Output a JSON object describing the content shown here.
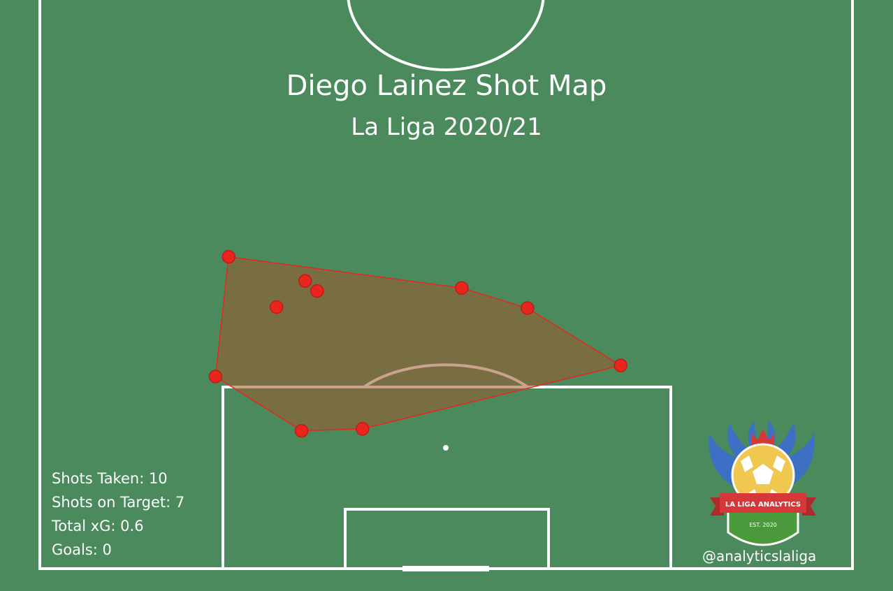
{
  "chart_data": {
    "type": "scatter",
    "title": "Diego Lainez Shot Map",
    "subtitle": "La Liga 2020/21",
    "pitch_view": "attacking half, goal at bottom",
    "grid": false,
    "legend": "none",
    "shots": [
      {
        "x": 15.8,
        "y": 31.0
      },
      {
        "x": 22.2,
        "y": 28.6
      },
      {
        "x": 23.2,
        "y": 27.6
      },
      {
        "x": 19.8,
        "y": 26.0
      },
      {
        "x": 35.3,
        "y": 27.9
      },
      {
        "x": 40.8,
        "y": 25.9
      },
      {
        "x": 48.6,
        "y": 20.2
      },
      {
        "x": 14.7,
        "y": 19.1
      },
      {
        "x": 21.9,
        "y": 13.7
      },
      {
        "x": 27.0,
        "y": 13.9
      }
    ],
    "hull_order": [
      0,
      4,
      5,
      6,
      9,
      8,
      7
    ],
    "colors": {
      "pitch": "#4a8a5c",
      "lines": "#ffffff",
      "shot": "#e8261e",
      "hull_fill": "#a0582e",
      "hull_stroke": "#e8261e"
    }
  },
  "stats": {
    "shots_taken": "Shots Taken: 10",
    "shots_on_target": "Shots on Target: 7",
    "total_xg": "Total xG: 0.6",
    "goals": "Goals: 0"
  },
  "logo": {
    "banner_text": "LA LIGA ANALYTICS",
    "est_text": "EST. 2020",
    "handle": "@analyticslaliga",
    "colors": {
      "wings": "#3d6fc4",
      "ball": "#f0c850",
      "banner": "#d6383a",
      "shield": "#4a9a3c",
      "crown": "#d6383a"
    }
  }
}
